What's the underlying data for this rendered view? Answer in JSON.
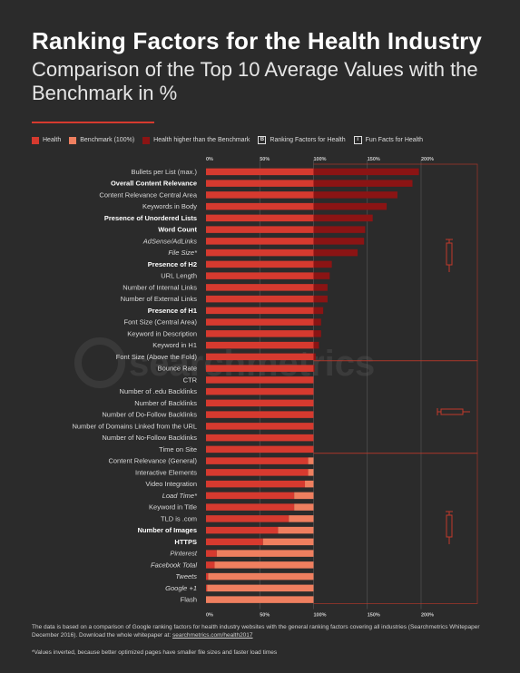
{
  "title": "Ranking Factors for the Health Industry",
  "subtitle": "Comparison of the Top 10 Average Values with the Benchmark in %",
  "legend": {
    "health": "Health",
    "benchmark": "Benchmark (100%)",
    "higher": "Health higher than the Benchmark",
    "ranking_box": "B",
    "ranking": "Ranking Factors for Health",
    "fun_box": "i",
    "fun": "Fun Facts for Health"
  },
  "colors": {
    "health": "#d63a2f",
    "benchmark": "#ef7f5f",
    "higher": "#8b1414",
    "background": "#2b2b2b"
  },
  "watermark": "searchmetrics",
  "footer": {
    "text": "The data is based on a comparison of Google ranking factors for health industry websites with the general ranking factors covering all industries (Searchmetrics Whitepaper December 2016). Download the whole whitepaper at:",
    "link": "searchmetrics.com/health2017",
    "footnote": "*Values inverted, because better optimized pages have smaller file sizes and faster load times"
  },
  "chart_data": {
    "type": "bar",
    "orientation": "horizontal",
    "xlim": [
      0,
      200
    ],
    "benchmark": 100,
    "ticks": [
      "0%",
      "50%",
      "100%",
      "150%",
      "200%"
    ],
    "tick_values": [
      0,
      50,
      100,
      150,
      200
    ],
    "grid": true,
    "categories": [
      {
        "label": "Bullets per List (max.)",
        "value": 198,
        "bold": false,
        "italic": false
      },
      {
        "label": "Overall Content Relevance",
        "value": 192,
        "bold": true,
        "italic": false
      },
      {
        "label": "Content Relevance Central Area",
        "value": 178,
        "bold": false,
        "italic": false
      },
      {
        "label": "Keywords in Body",
        "value": 168,
        "bold": false,
        "italic": false
      },
      {
        "label": "Presence of Unordered Lists",
        "value": 155,
        "bold": true,
        "italic": false
      },
      {
        "label": "Word Count",
        "value": 148,
        "bold": true,
        "italic": false
      },
      {
        "label": "AdSense/AdLinks",
        "value": 147,
        "bold": false,
        "italic": true
      },
      {
        "label": "File Size*",
        "value": 141,
        "bold": false,
        "italic": true
      },
      {
        "label": "Presence of H2",
        "value": 117,
        "bold": true,
        "italic": false
      },
      {
        "label": "URL Length",
        "value": 115,
        "bold": false,
        "italic": false
      },
      {
        "label": "Number of Internal Links",
        "value": 113,
        "bold": false,
        "italic": false
      },
      {
        "label": "Number of External Links",
        "value": 113,
        "bold": false,
        "italic": false
      },
      {
        "label": "Presence of H1",
        "value": 109,
        "bold": true,
        "italic": false
      },
      {
        "label": "Font Size (Central Area)",
        "value": 107,
        "bold": false,
        "italic": false
      },
      {
        "label": "Keyword in Description",
        "value": 107,
        "bold": false,
        "italic": false
      },
      {
        "label": "Keyword in H1",
        "value": 105,
        "bold": false,
        "italic": false
      },
      {
        "label": "Font Size (Above the Fold)",
        "value": 102,
        "bold": false,
        "italic": false
      },
      {
        "label": "Bounce Rate",
        "value": 101,
        "bold": false,
        "italic": false
      },
      {
        "label": "CTR",
        "value": 100,
        "bold": false,
        "italic": false
      },
      {
        "label": "Number of .edu Backlinks",
        "value": 100,
        "bold": false,
        "italic": false
      },
      {
        "label": "Number of Backlinks",
        "value": 100,
        "bold": false,
        "italic": false
      },
      {
        "label": "Number of Do-Follow Backlinks",
        "value": 100,
        "bold": false,
        "italic": false
      },
      {
        "label": "Number of Domains Linked from the URL",
        "value": 100,
        "bold": false,
        "italic": false
      },
      {
        "label": "Number of No-Follow Backlinks",
        "value": 100,
        "bold": false,
        "italic": false
      },
      {
        "label": "Time on Site",
        "value": 100,
        "bold": false,
        "italic": false
      },
      {
        "label": "Content Relevance (General)",
        "value": 95,
        "bold": false,
        "italic": false
      },
      {
        "label": "Interactive Elements",
        "value": 95,
        "bold": false,
        "italic": false
      },
      {
        "label": "Video Integration",
        "value": 92,
        "bold": false,
        "italic": false
      },
      {
        "label": "Load Time*",
        "value": 82,
        "bold": false,
        "italic": true
      },
      {
        "label": "Keyword in Title",
        "value": 82,
        "bold": false,
        "italic": false
      },
      {
        "label": "TLD is .com",
        "value": 77,
        "bold": false,
        "italic": false
      },
      {
        "label": "Number of Images",
        "value": 67,
        "bold": true,
        "italic": false
      },
      {
        "label": "HTTPS",
        "value": 53,
        "bold": true,
        "italic": false
      },
      {
        "label": "Pinterest",
        "value": 10,
        "bold": false,
        "italic": true
      },
      {
        "label": "Facebook Total",
        "value": 8,
        "bold": false,
        "italic": true
      },
      {
        "label": "Tweets",
        "value": 2,
        "bold": false,
        "italic": true
      },
      {
        "label": "Google +1",
        "value": 1,
        "bold": false,
        "italic": true
      },
      {
        "label": "Flash",
        "value": 0,
        "bold": false,
        "italic": false
      }
    ]
  }
}
